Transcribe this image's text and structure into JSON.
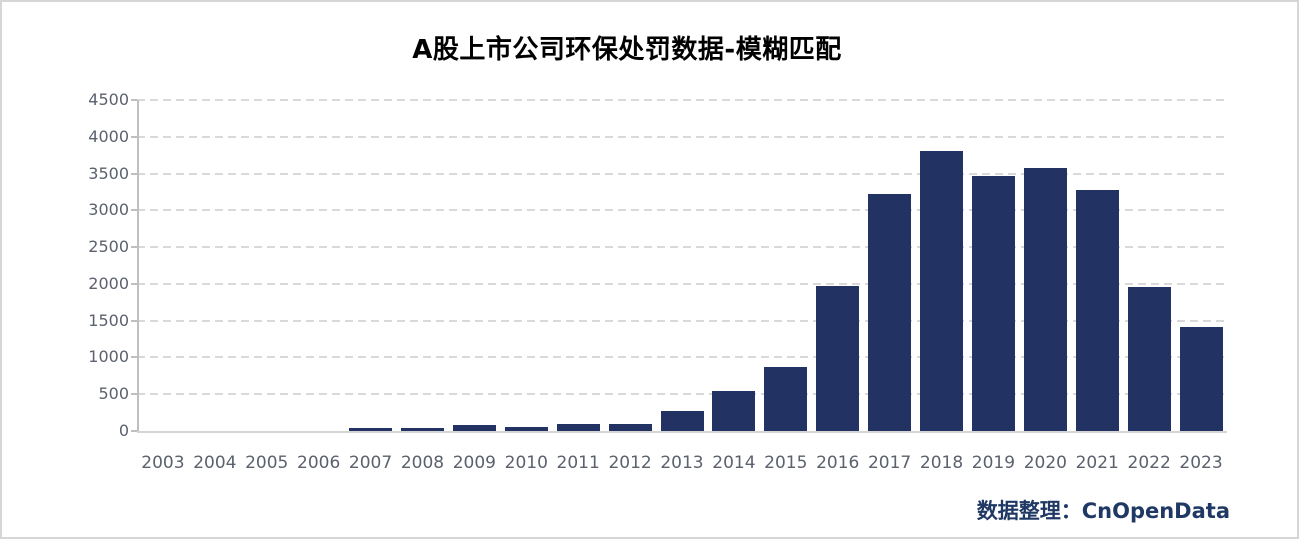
{
  "title": "A股上市公司环保处罚数据-模糊匹配",
  "footer": {
    "credit": "数据整理：CnOpenData"
  },
  "colors": {
    "bar": "#223363",
    "grid": "#d9d9d9",
    "axis": "#bfbfbf",
    "baseline": "#d4d4d4",
    "tick_label": "#5b616d",
    "title": "#000000",
    "credit": "#1f3864",
    "canvas_border": "#d6d6d6"
  },
  "chart_data": {
    "type": "bar",
    "title": "A股上市公司环保处罚数据-模糊匹配",
    "categories": [
      "2003",
      "2004",
      "2005",
      "2006",
      "2007",
      "2008",
      "2009",
      "2010",
      "2011",
      "2012",
      "2013",
      "2014",
      "2015",
      "2016",
      "2017",
      "2018",
      "2019",
      "2020",
      "2021",
      "2022",
      "2023"
    ],
    "values": [
      0,
      0,
      0,
      0,
      35,
      35,
      80,
      60,
      100,
      90,
      270,
      540,
      865,
      1965,
      3225,
      3810,
      3465,
      3580,
      3270,
      1955,
      1420
    ],
    "xlabel": "",
    "ylabel": "",
    "ylim": [
      0,
      4500
    ],
    "ytick_step": 500,
    "ytick_labels": [
      "0",
      "500",
      "1000",
      "1500",
      "2000",
      "2500",
      "3000",
      "3500",
      "4000",
      "4500"
    ],
    "grid": "horizontal-dashed",
    "legend": "none",
    "source_note": "数据整理：CnOpenData"
  }
}
